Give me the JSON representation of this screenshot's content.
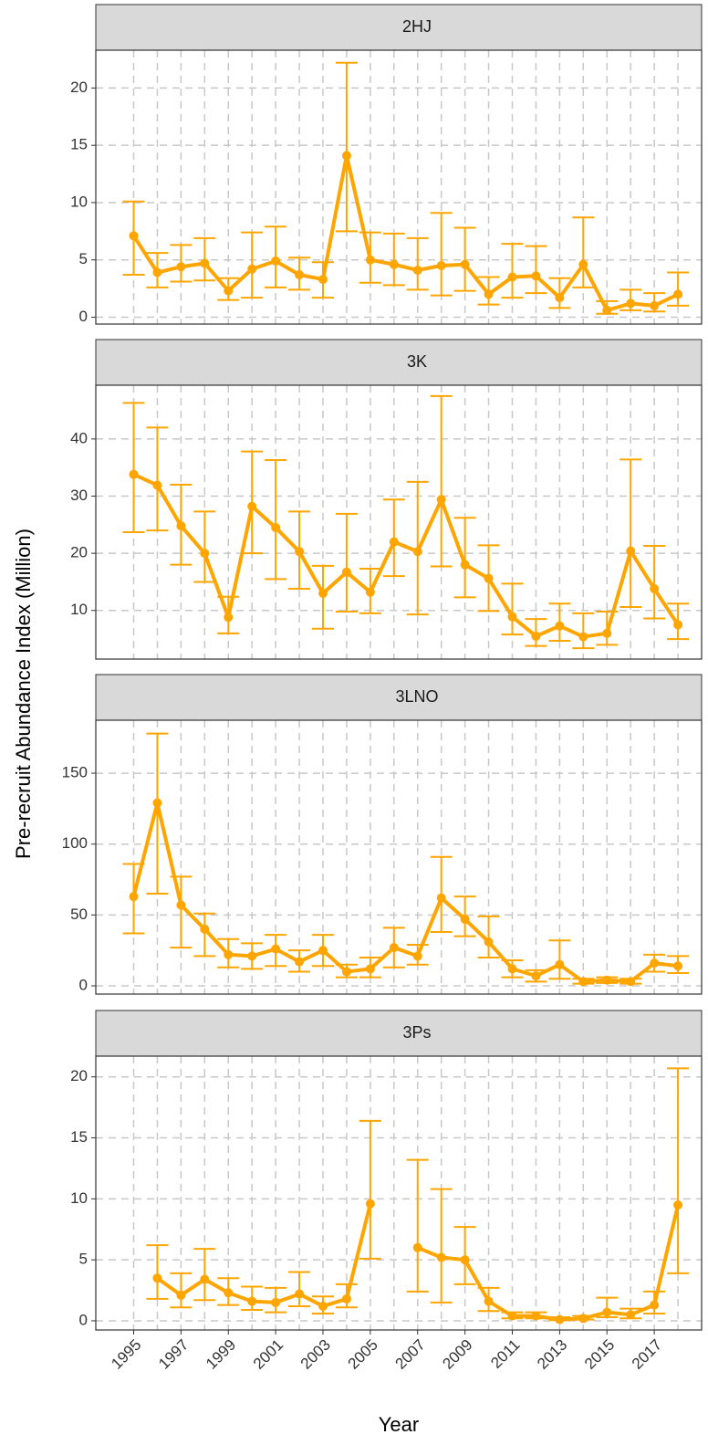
{
  "ylabel": "Pre-recruit Abundance Index (Million)",
  "xlabel": "Year",
  "chart_data": [
    {
      "type": "line",
      "title": "2HJ",
      "color": "#FFA500",
      "grid": true,
      "x": [
        1995,
        1996,
        1997,
        1998,
        1999,
        2000,
        2001,
        2002,
        2003,
        2004,
        2005,
        2006,
        2007,
        2008,
        2009,
        2010,
        2011,
        2012,
        2013,
        2014,
        2015,
        2016,
        2017,
        2018
      ],
      "values": [
        7.1,
        3.9,
        4.4,
        4.7,
        2.3,
        4.2,
        4.9,
        3.7,
        3.3,
        14.1,
        5.0,
        4.6,
        4.1,
        4.5,
        4.6,
        2.0,
        3.5,
        3.6,
        1.7,
        4.6,
        0.6,
        1.2,
        1.0,
        2.0
      ],
      "lower": [
        3.7,
        2.6,
        3.1,
        3.2,
        1.5,
        1.7,
        2.6,
        2.4,
        1.7,
        7.5,
        3.0,
        2.8,
        2.4,
        1.9,
        2.3,
        1.1,
        1.7,
        2.1,
        0.8,
        2.6,
        0.3,
        0.6,
        0.5,
        1.0
      ],
      "upper": [
        10.1,
        5.6,
        6.3,
        6.9,
        3.4,
        7.4,
        7.9,
        5.2,
        4.8,
        22.2,
        7.4,
        7.3,
        6.9,
        9.1,
        7.8,
        3.5,
        6.4,
        6.2,
        3.4,
        8.7,
        1.4,
        2.4,
        2.1,
        3.9
      ],
      "xlim": [
        1993.4,
        2019
      ],
      "ylim": [
        -0.6,
        23.3
      ],
      "yticks": [
        0,
        5,
        10,
        15,
        20
      ]
    },
    {
      "type": "line",
      "title": "3K",
      "color": "#FFA500",
      "grid": true,
      "x": [
        1995,
        1996,
        1997,
        1998,
        1999,
        2000,
        2001,
        2002,
        2003,
        2004,
        2005,
        2006,
        2007,
        2008,
        2009,
        2010,
        2011,
        2012,
        2013,
        2014,
        2015,
        2016,
        2017,
        2018
      ],
      "values": [
        33.8,
        31.9,
        24.8,
        20,
        8.8,
        28.2,
        24.5,
        20.3,
        13,
        16.7,
        13.2,
        22,
        20.3,
        29.4,
        18,
        15.6,
        8.9,
        5.5,
        7.3,
        5.4,
        6,
        20.4,
        13.8,
        7.5
      ],
      "lower": [
        23.7,
        24,
        18,
        15,
        6,
        20,
        15.5,
        13.8,
        6.8,
        9.8,
        9.5,
        16,
        9.3,
        17.7,
        12.3,
        9.9,
        5.8,
        3.8,
        4.7,
        3.4,
        4,
        10.6,
        8.6,
        5
      ],
      "upper": [
        46.3,
        42,
        32,
        27.3,
        12.4,
        37.8,
        36.3,
        27.3,
        17.8,
        26.9,
        17.3,
        29.4,
        32.5,
        47.5,
        26.2,
        21.4,
        14.7,
        8.5,
        11.2,
        9.5,
        9.8,
        36.4,
        21.3,
        11.2
      ],
      "xlim": [
        1993.4,
        2019
      ],
      "ylim": [
        1.5,
        49.4
      ],
      "yticks": [
        10,
        20,
        30,
        40
      ]
    },
    {
      "type": "line",
      "title": "3LNO",
      "color": "#FFA500",
      "grid": true,
      "x": [
        1995,
        1996,
        1997,
        1998,
        1999,
        2000,
        2001,
        2002,
        2003,
        2004,
        2005,
        2006,
        2007,
        2008,
        2009,
        2010,
        2011,
        2012,
        2013,
        2014,
        2015,
        2016,
        2017,
        2018
      ],
      "values": [
        63,
        129,
        57,
        40,
        22,
        21,
        26,
        17,
        25,
        10,
        12,
        27,
        21,
        62,
        47,
        31,
        12,
        7,
        15,
        3,
        4,
        3,
        16,
        14
      ],
      "lower": [
        37,
        65,
        27,
        21,
        13,
        12,
        14,
        10,
        14,
        6,
        6,
        13,
        15,
        38,
        35,
        20,
        6,
        3,
        5,
        1.5,
        2,
        1.5,
        10,
        9
      ],
      "upper": [
        86,
        178,
        77,
        51,
        33,
        30,
        36,
        25,
        36,
        15,
        20,
        41,
        29,
        91,
        63,
        49,
        18,
        11,
        32,
        5,
        6,
        5,
        22,
        21
      ],
      "xlim": [
        1993.4,
        2019
      ],
      "ylim": [
        -5.8,
        187.4
      ],
      "yticks": [
        0,
        50,
        100,
        150
      ]
    },
    {
      "type": "line",
      "title": "3Ps",
      "color": "#FFA500",
      "grid": true,
      "x": [
        1995,
        1996,
        1997,
        1998,
        1999,
        2000,
        2001,
        2002,
        2003,
        2004,
        2005,
        2006,
        2007,
        2008,
        2009,
        2010,
        2011,
        2012,
        2013,
        2014,
        2015,
        2016,
        2017,
        2018
      ],
      "values": [
        null,
        3.5,
        2.1,
        3.4,
        2.3,
        1.6,
        1.5,
        2.2,
        1.2,
        1.8,
        9.6,
        null,
        6.0,
        5.2,
        5.0,
        1.6,
        0.4,
        0.4,
        0.1,
        0.2,
        0.7,
        0.5,
        1.3,
        9.5
      ],
      "lower": [
        null,
        1.8,
        1.1,
        1.7,
        1.3,
        0.9,
        0.7,
        1.2,
        0.6,
        1.1,
        5.1,
        null,
        2.4,
        1.5,
        3.0,
        0.8,
        0.2,
        0.2,
        0.05,
        0.1,
        0.3,
        0.2,
        0.6,
        3.9
      ],
      "upper": [
        null,
        6.2,
        3.9,
        5.9,
        3.5,
        2.8,
        2.7,
        4.0,
        2.0,
        3.0,
        16.4,
        null,
        13.2,
        10.8,
        7.7,
        2.7,
        0.7,
        0.7,
        0.3,
        0.4,
        1.9,
        1.0,
        2.4,
        20.7
      ],
      "xlim": [
        1993.4,
        2019
      ],
      "ylim": [
        -0.75,
        21.7
      ],
      "yticks": [
        0,
        5,
        10,
        15,
        20
      ],
      "xticks": [
        1995,
        1997,
        1999,
        2001,
        2003,
        2005,
        2007,
        2009,
        2011,
        2013,
        2015,
        2017
      ]
    }
  ]
}
